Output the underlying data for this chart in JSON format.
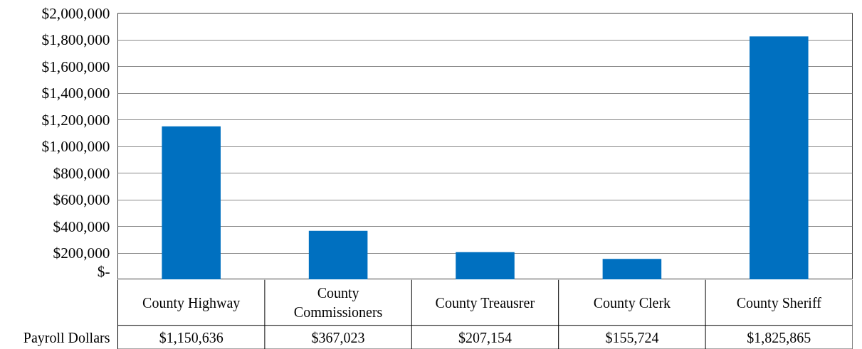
{
  "chart_data": {
    "type": "bar",
    "categories": [
      "County Highway",
      "County Commissioners",
      "County Treausrer",
      "County Clerk",
      "County Sheriff"
    ],
    "series": [
      {
        "name": "Payroll Dollars",
        "color": "#0070c0",
        "values": [
          1150636,
          367023,
          207154,
          155724,
          1825865
        ],
        "value_labels": [
          "$1,150,636",
          "$367,023",
          "$207,154",
          "$155,724",
          "$1,825,865"
        ]
      }
    ],
    "ylim": [
      0,
      2000000
    ],
    "yticks": [
      {
        "value": 0,
        "label": "$-"
      },
      {
        "value": 200000,
        "label": "$200,000"
      },
      {
        "value": 400000,
        "label": "$400,000"
      },
      {
        "value": 600000,
        "label": "$600,000"
      },
      {
        "value": 800000,
        "label": "$800,000"
      },
      {
        "value": 1000000,
        "label": "$1,000,000"
      },
      {
        "value": 1200000,
        "label": "$1,200,000"
      },
      {
        "value": 1400000,
        "label": "$1,400,000"
      },
      {
        "value": 1600000,
        "label": "$1,600,000"
      },
      {
        "value": 1800000,
        "label": "$1,800,000"
      },
      {
        "value": 2000000,
        "label": "$2,000,000"
      }
    ],
    "grid": "y",
    "legend": false
  }
}
